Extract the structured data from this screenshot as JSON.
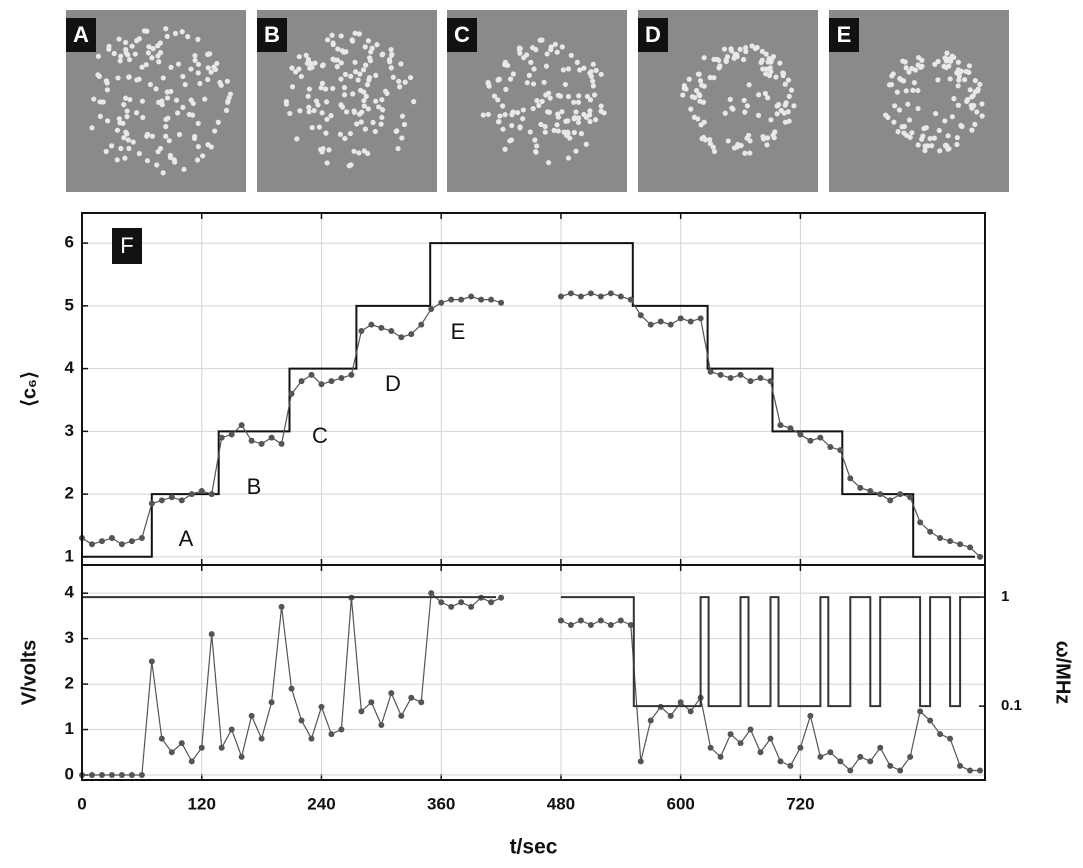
{
  "panels": {
    "labels": [
      "A",
      "B",
      "C",
      "D",
      "E"
    ]
  },
  "chart_data": [
    {
      "type": "line",
      "label": "F",
      "ylabel": "⟨c₆⟩",
      "annotations": [
        "A",
        "B",
        "C",
        "D",
        "E"
      ],
      "xlim": [
        0,
        905
      ],
      "xticks": [
        0,
        120,
        240,
        360,
        480,
        600,
        720
      ],
      "ylim": [
        0.87,
        6.48
      ],
      "yticks": [
        1,
        2,
        3,
        4,
        5,
        6
      ],
      "grid": true,
      "series": [
        {
          "color": "#111111",
          "marker": false,
          "x": [
            0,
            70,
            70,
            137,
            137,
            208,
            208,
            275,
            275,
            349,
            349,
            552,
            552,
            627,
            627,
            692,
            692,
            762,
            762,
            833,
            833,
            895
          ],
          "values": [
            1,
            1,
            2,
            2,
            3,
            3,
            4,
            4,
            5,
            5,
            6,
            6,
            5,
            5,
            4,
            4,
            3,
            3,
            2,
            2,
            1,
            1
          ]
        },
        {
          "color": "#555555",
          "marker": true,
          "x": [
            0,
            10,
            20,
            30,
            40,
            50,
            60,
            70,
            80,
            90,
            100,
            110,
            120,
            130,
            140,
            150,
            160,
            170,
            180,
            190,
            200,
            210,
            220,
            230,
            240,
            250,
            260,
            270,
            280,
            290,
            300,
            310,
            320,
            330,
            340,
            350,
            360,
            370,
            380,
            390,
            400,
            410,
            420,
            430,
            480,
            490,
            500,
            510,
            520,
            530,
            540,
            550,
            560,
            570,
            580,
            590,
            600,
            610,
            620,
            630,
            640,
            650,
            660,
            670,
            680,
            690,
            700,
            710,
            720,
            730,
            740,
            750,
            760,
            770,
            780,
            790,
            800,
            810,
            820,
            830,
            840,
            850,
            860,
            870,
            880,
            890,
            900
          ],
          "values": [
            1.3,
            1.2,
            1.25,
            1.3,
            1.2,
            1.25,
            1.3,
            1.85,
            1.9,
            1.95,
            1.9,
            2.0,
            2.05,
            2.0,
            2.9,
            2.95,
            3.1,
            2.85,
            2.8,
            2.9,
            2.8,
            3.6,
            3.8,
            3.9,
            3.75,
            3.8,
            3.85,
            3.9,
            4.6,
            4.7,
            4.65,
            4.6,
            4.5,
            4.55,
            4.7,
            4.95,
            5.05,
            5.1,
            5.1,
            5.15,
            5.1,
            5.1,
            5.05,
            null,
            5.15,
            5.2,
            5.15,
            5.2,
            5.15,
            5.2,
            5.15,
            5.1,
            4.85,
            4.7,
            4.75,
            4.7,
            4.8,
            4.75,
            4.8,
            3.95,
            3.9,
            3.85,
            3.9,
            3.8,
            3.85,
            3.8,
            3.1,
            3.05,
            2.95,
            2.85,
            2.9,
            2.75,
            2.7,
            2.25,
            2.1,
            2.05,
            2.0,
            1.9,
            2.0,
            1.95,
            1.55,
            1.4,
            1.3,
            1.25,
            1.2,
            1.15,
            1.0
          ]
        }
      ]
    },
    {
      "type": "line",
      "xlabel": "t/sec",
      "ylabel": "V/volts",
      "y2label": "ω/MHz",
      "xlim": [
        0,
        905
      ],
      "xticks": [
        0,
        120,
        240,
        360,
        480,
        600,
        720
      ],
      "ylim": [
        -0.11,
        4.62
      ],
      "yticks": [
        0,
        1,
        2,
        3,
        4
      ],
      "y2lim": [
        0.021,
        1.97
      ],
      "y2ticks": [
        1,
        0.1
      ],
      "y2scale": "log",
      "grid": true,
      "series": [
        {
          "color": "#555555",
          "marker": true,
          "x": [
            0,
            10,
            20,
            30,
            40,
            50,
            60,
            70,
            80,
            90,
            100,
            110,
            120,
            130,
            140,
            150,
            160,
            170,
            180,
            190,
            200,
            210,
            220,
            230,
            240,
            250,
            260,
            270,
            280,
            290,
            300,
            310,
            320,
            330,
            340,
            350,
            360,
            370,
            380,
            390,
            400,
            410,
            420,
            430,
            480,
            490,
            500,
            510,
            520,
            530,
            540,
            550,
            560,
            570,
            580,
            590,
            600,
            610,
            620,
            630,
            640,
            650,
            660,
            670,
            680,
            690,
            700,
            710,
            720,
            730,
            740,
            750,
            760,
            770,
            780,
            790,
            800,
            810,
            820,
            830,
            840,
            850,
            860,
            870,
            880,
            890,
            900
          ],
          "values": [
            0,
            0,
            0,
            0,
            0,
            0,
            0,
            2.5,
            0.8,
            0.5,
            0.7,
            0.3,
            0.6,
            3.1,
            0.6,
            1.0,
            0.4,
            1.3,
            0.8,
            1.6,
            3.7,
            1.9,
            1.2,
            0.8,
            1.5,
            0.9,
            1.0,
            3.9,
            1.4,
            1.6,
            1.1,
            1.8,
            1.3,
            1.7,
            1.6,
            4.0,
            3.8,
            3.7,
            3.8,
            3.7,
            3.9,
            3.8,
            3.9,
            null,
            3.4,
            3.3,
            3.4,
            3.3,
            3.4,
            3.3,
            3.4,
            3.3,
            0.3,
            1.2,
            1.5,
            1.3,
            1.6,
            1.4,
            1.7,
            0.6,
            0.4,
            0.9,
            0.7,
            1.0,
            0.5,
            0.8,
            0.3,
            0.2,
            0.6,
            1.3,
            0.4,
            0.5,
            0.3,
            0.1,
            0.4,
            0.3,
            0.6,
            0.2,
            0.1,
            0.4,
            1.4,
            1.2,
            0.9,
            0.8,
            0.2,
            0.1,
            0.1
          ]
        },
        {
          "color": "#333333",
          "marker": false,
          "axis": "y2",
          "x": [
            0,
            415,
            430,
            480,
            553,
            553,
            620,
            620,
            628,
            628,
            660,
            660,
            668,
            668,
            690,
            690,
            698,
            698,
            740,
            740,
            748,
            748,
            770,
            770,
            790,
            790,
            800,
            800,
            840,
            840,
            850,
            850,
            870,
            870,
            880,
            880,
            900
          ],
          "values": [
            1,
            1,
            null,
            1,
            1,
            0.1,
            0.1,
            1,
            1,
            0.1,
            0.1,
            1,
            1,
            0.1,
            0.1,
            1,
            1,
            0.1,
            0.1,
            1,
            1,
            0.1,
            0.1,
            1,
            1,
            0.1,
            0.1,
            1,
            1,
            0.1,
            0.1,
            1,
            1,
            0.1,
            0.1,
            1,
            1
          ]
        }
      ]
    }
  ]
}
